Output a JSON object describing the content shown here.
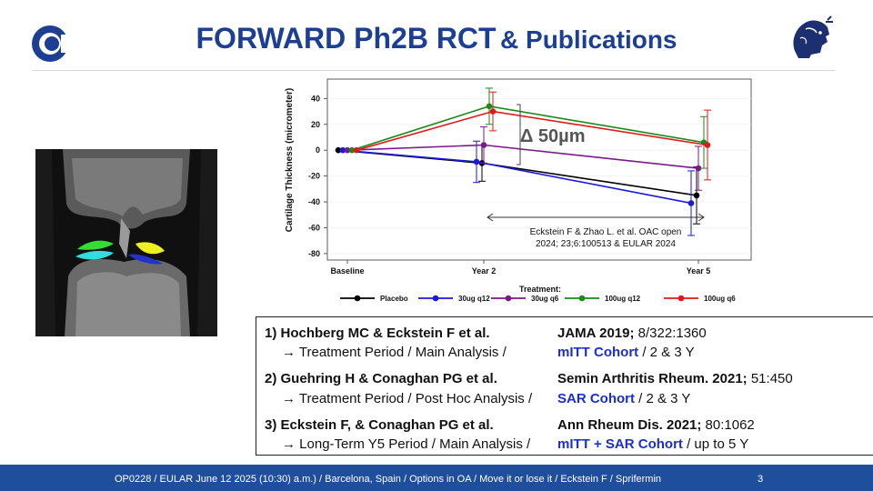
{
  "header": {
    "title_main": "FORWARD Ph2B RCT",
    "title_sub": "& Publications"
  },
  "chart_data": {
    "type": "line",
    "ylabel": "Cartilage Thickness (micrometer)",
    "categories": [
      "Baseline",
      "Year 2",
      "Year 5"
    ],
    "ylim": [
      -85,
      55
    ],
    "yticks": [
      40,
      20,
      0,
      -20,
      -40,
      -60,
      -80
    ],
    "legend_title": "Treatment:",
    "series": [
      {
        "name": "Placebo",
        "color": "#000000",
        "values": [
          0,
          -10,
          -35
        ],
        "err": [
          0,
          14,
          22
        ]
      },
      {
        "name": "30ug q12",
        "color": "#1a1adc",
        "values": [
          0,
          -9,
          -41
        ],
        "err": [
          0,
          16,
          25
        ]
      },
      {
        "name": "30ug q6",
        "color": "#7a1a8a",
        "values": [
          0,
          4,
          -14
        ],
        "err": [
          0,
          14,
          17
        ]
      },
      {
        "name": "100ug q12",
        "color": "#1a8a1a",
        "values": [
          0,
          34,
          6
        ],
        "err": [
          0,
          14,
          20
        ]
      },
      {
        "name": "100ug q6",
        "color": "#e01a1a",
        "values": [
          0,
          30,
          4
        ],
        "err": [
          0,
          15,
          27
        ]
      }
    ],
    "annotations": {
      "delta": "Δ 50µm",
      "citation_line1": "Eckstein F & Zhao L. et al. OAC open",
      "citation_line2": "2024; 23;6:100513 & EULAR 2024"
    }
  },
  "references": [
    {
      "title": "1) Hochberg MC & Eckstein F et al.",
      "detail": "→ Treatment Period / Main Analysis /",
      "journal": "JAMA 2019;",
      "citation": " 8/322:1360",
      "cohort": "mITT Cohort",
      "cohort_tail": " / 2 & 3 Y"
    },
    {
      "title": "2) Guehring H & Conaghan PG et al.",
      "detail": "→ Treatment Period / Post Hoc Analysis /",
      "journal": "Semin Arthritis Rheum. 2021;",
      "citation": " 51:450",
      "cohort": "SAR Cohort",
      "cohort_tail": " /  2 & 3 Y"
    },
    {
      "title": "3) Eckstein F, & Conaghan PG et al.",
      "detail": "→ Long-Term Y5 Period / Main Analysis /",
      "journal": "Ann Rheum Dis. 2021;",
      "citation": " 80:1062",
      "cohort": "mITT + SAR Cohort",
      "cohort_tail": " / up to 5 Y"
    }
  ],
  "footer": {
    "text": "OP0228 / EULAR  June 12 2025 (10:30) a.m.) / Barcelona, Spain / Options in OA / Move it or lose it / Eckstein F / Sprifermin",
    "page": "3"
  },
  "colors": {
    "title": "#1c3f94",
    "footer_bg": "#1f4e9c",
    "cohort": "#1a2fcc"
  }
}
